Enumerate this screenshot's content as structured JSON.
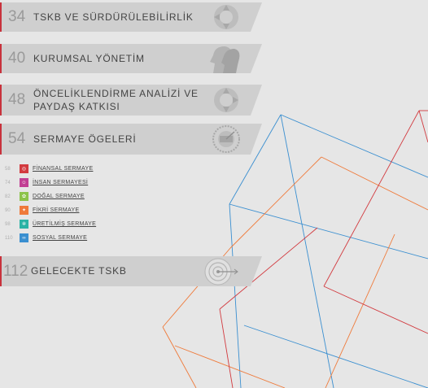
{
  "sections": [
    {
      "page": "34",
      "title": "TSKB VE SÜRDÜRÜLEBİLİRLİK",
      "icon": "circle-arrows-icon"
    },
    {
      "page": "40",
      "title": "KURUMSAL YÖNETİM",
      "icon": "heads-silhouette-icon"
    },
    {
      "page": "48",
      "title_line1": "ÖNCELİKLENDİRME ANALİZİ VE",
      "title_line2": "PAYDAŞ KATKISI",
      "icon": "circle-arrows-icon"
    },
    {
      "page": "54",
      "title": "SERMAYE ÖGELERİ",
      "icon": "gauge-icon"
    },
    {
      "page": "112",
      "title": "GELECEKTE TSKB",
      "icon": "target-arrow-icon"
    }
  ],
  "capitals": [
    {
      "page": "58",
      "label": "FİNANSAL SERMAYE",
      "color": "#d23a3f",
      "icon": "money-icon"
    },
    {
      "page": "74",
      "label": "İNSAN SERMAYESİ",
      "color": "#c13f93",
      "icon": "people-icon"
    },
    {
      "page": "82",
      "label": "DOĞAL SERMAYE",
      "color": "#8cc34a",
      "icon": "leaf-icon"
    },
    {
      "page": "90",
      "label": "FİKRİ SERMAYE",
      "color": "#ef7a3a",
      "icon": "bulb-icon"
    },
    {
      "page": "98",
      "label": "ÜRETİLMİŞ SERMAYE",
      "color": "#2ab3a5",
      "icon": "gear-icon"
    },
    {
      "page": "110",
      "label": "SOSYAL SERMAYE",
      "color": "#3a8fd0",
      "icon": "handshake-icon"
    }
  ],
  "colors": {
    "accent": "#c8323c",
    "band": "#cfcfcf",
    "background": "#e6e6e6",
    "line_blue": "#3a8fd0",
    "line_orange": "#ef7a3a",
    "line_red": "#d23a3f"
  }
}
